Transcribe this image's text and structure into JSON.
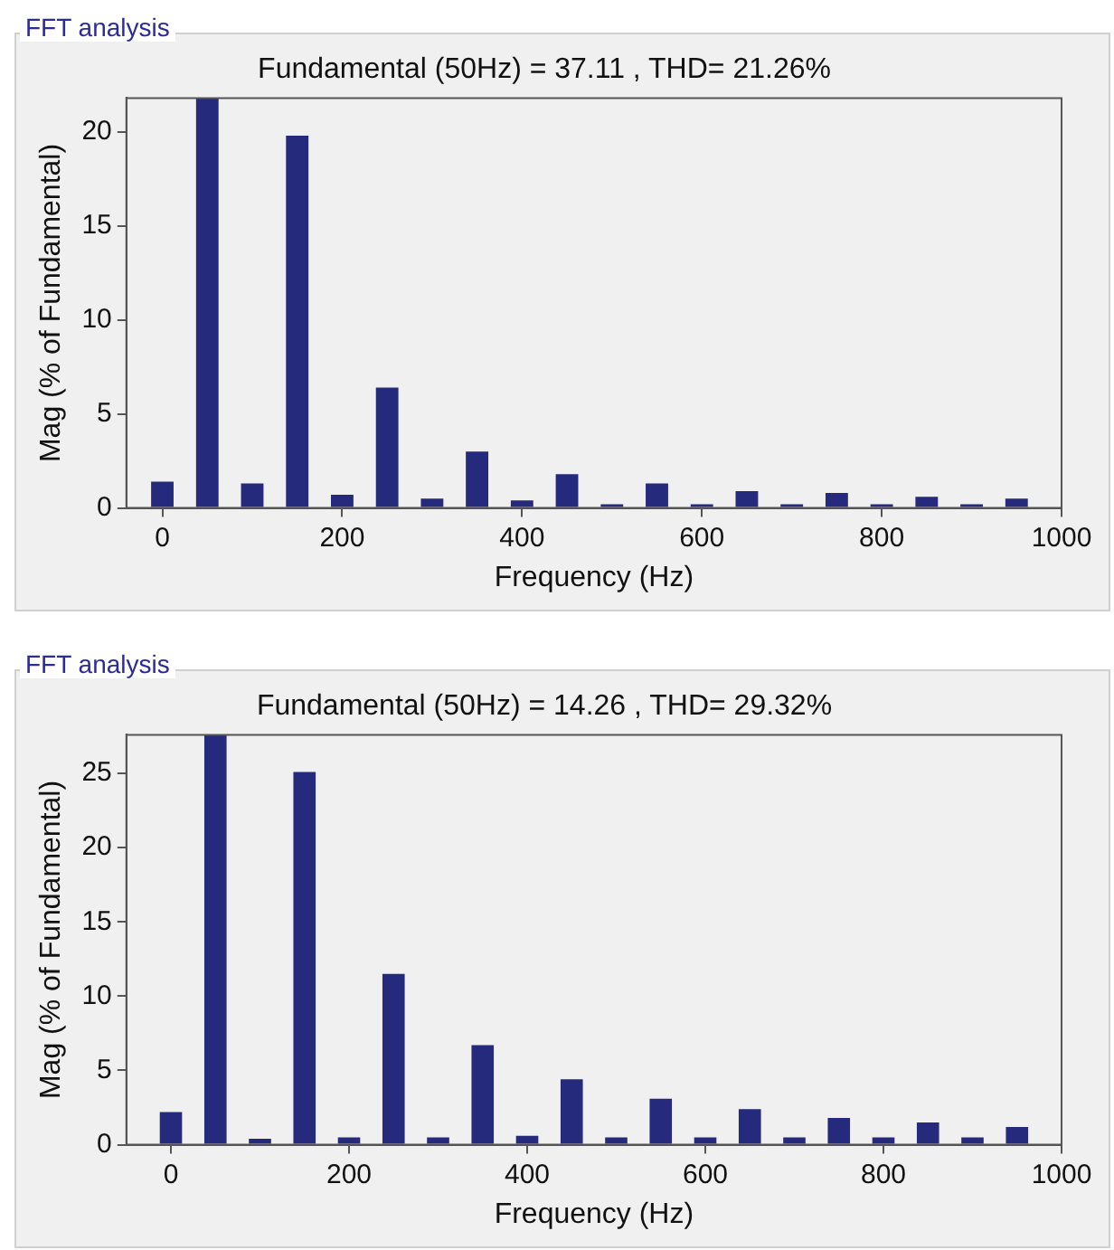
{
  "chart_data": [
    {
      "type": "bar",
      "title": "Fundamental (50Hz) = 37.11 , THD= 21.26%",
      "xlabel": "Frequency (Hz)",
      "ylabel": "Mag (% of Fundamental)",
      "annotations": [
        "FFT analysis"
      ],
      "x": [
        0,
        50,
        100,
        150,
        200,
        250,
        300,
        350,
        400,
        450,
        500,
        550,
        600,
        650,
        700,
        750,
        800,
        850,
        900,
        950
      ],
      "values": [
        1.4,
        21.8,
        1.3,
        19.8,
        0.7,
        6.4,
        0.5,
        3.0,
        0.4,
        1.8,
        0.2,
        1.3,
        0.2,
        0.9,
        0.2,
        0.8,
        0.2,
        0.6,
        0.2,
        0.5
      ],
      "color": "#262a7c",
      "xlim": [
        -40,
        1000
      ],
      "xticks": [
        0,
        200,
        400,
        600,
        800,
        1000
      ],
      "ylim": [
        0,
        21.8
      ],
      "yticks": [
        0,
        5,
        10,
        15,
        20
      ]
    },
    {
      "type": "bar",
      "title": "Fundamental (50Hz) = 14.26 , THD= 29.32%",
      "xlabel": "Frequency (Hz)",
      "ylabel": "Mag (% of Fundamental)",
      "annotations": [
        "FFT analysis"
      ],
      "x": [
        0,
        50,
        100,
        150,
        200,
        250,
        300,
        350,
        400,
        450,
        500,
        550,
        600,
        650,
        700,
        750,
        800,
        850,
        900,
        950
      ],
      "values": [
        2.2,
        27.6,
        0.4,
        25.1,
        0.5,
        11.5,
        0.5,
        6.7,
        0.6,
        4.4,
        0.5,
        3.1,
        0.5,
        2.4,
        0.5,
        1.8,
        0.5,
        1.5,
        0.5,
        1.2
      ],
      "color": "#262a7c",
      "xlim": [
        -50,
        1000
      ],
      "xticks": [
        0,
        200,
        400,
        600,
        800,
        1000
      ],
      "ylim": [
        0,
        27.6
      ],
      "yticks": [
        0,
        5,
        10,
        15,
        20,
        25
      ]
    }
  ]
}
